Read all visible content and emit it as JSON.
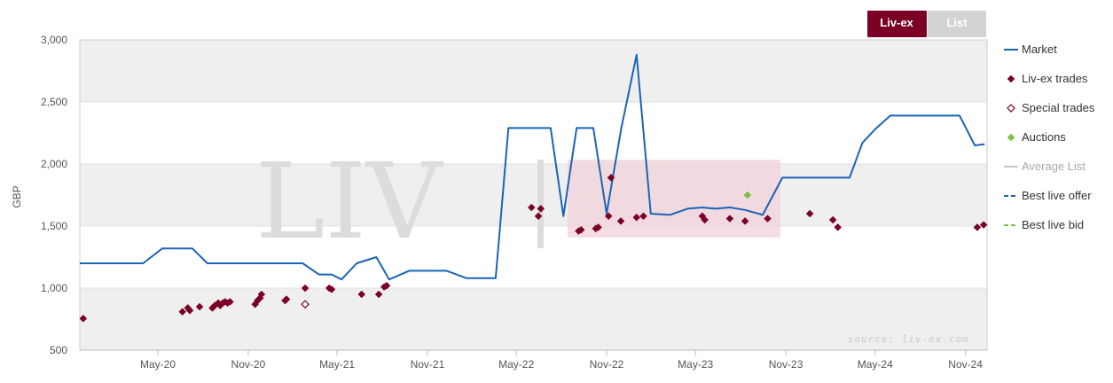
{
  "tabs": [
    {
      "label": "Liv-ex",
      "active": true
    },
    {
      "label": "List",
      "active": false
    }
  ],
  "source_note": "source: liv-ex.com",
  "legend": [
    {
      "label": "Market",
      "marker": "line",
      "color": "#1a64b8"
    },
    {
      "label": "Liv-ex trades",
      "marker": "diamond",
      "color": "#7a0026"
    },
    {
      "label": "Special trades",
      "marker": "diamond-open",
      "color": "#7a0026"
    },
    {
      "label": "Auctions",
      "marker": "diamond",
      "color": "#7cc242"
    },
    {
      "label": "Average List",
      "marker": "line",
      "color": "#c8c8c8",
      "muted": true
    },
    {
      "label": "Best live offer",
      "marker": "dash",
      "color": "#1a64b8"
    },
    {
      "label": "Best live bid",
      "marker": "dash",
      "color": "#7cc242"
    }
  ],
  "colors": {
    "tab_active": "#7a0026",
    "tab_inactive": "#d3d3d3",
    "band": "#efefef",
    "watermark_accent": "#efc9d3"
  },
  "chart_data": {
    "type": "line",
    "ylabel": "GBP",
    "ylim": [
      500,
      3000
    ],
    "yticks": [
      500,
      1000,
      1500,
      2000,
      2500,
      3000
    ],
    "ytick_labels": [
      "500",
      "1,000",
      "1,500",
      "2,000",
      "2,500",
      "3,000"
    ],
    "xlim": [
      "2019-11-24",
      "2024-12-15"
    ],
    "xticks": [
      "2020-05-01",
      "2020-11-01",
      "2021-05-01",
      "2021-11-01",
      "2022-05-01",
      "2022-11-01",
      "2023-05-01",
      "2023-11-01",
      "2024-05-01",
      "2024-11-01"
    ],
    "xtick_labels": [
      "May-20",
      "Nov-20",
      "May-21",
      "Nov-21",
      "May-22",
      "Nov-22",
      "May-23",
      "Nov-23",
      "May-24",
      "Nov-24"
    ],
    "grid": true,
    "legend_position": "right",
    "series": [
      {
        "name": "Market",
        "kind": "line",
        "color": "#1a64b8",
        "points": [
          [
            "2019-11-24",
            1200
          ],
          [
            "2020-04-01",
            1200
          ],
          [
            "2020-05-10",
            1320
          ],
          [
            "2020-07-10",
            1320
          ],
          [
            "2020-08-10",
            1200
          ],
          [
            "2021-01-10",
            1200
          ],
          [
            "2021-02-20",
            1200
          ],
          [
            "2021-03-25",
            1110
          ],
          [
            "2021-04-20",
            1110
          ],
          [
            "2021-05-10",
            1070
          ],
          [
            "2021-06-10",
            1200
          ],
          [
            "2021-07-20",
            1250
          ],
          [
            "2021-08-15",
            1070
          ],
          [
            "2021-09-25",
            1140
          ],
          [
            "2021-12-10",
            1140
          ],
          [
            "2022-01-20",
            1080
          ],
          [
            "2022-03-20",
            1080
          ],
          [
            "2022-04-15",
            2290
          ],
          [
            "2022-07-10",
            2290
          ],
          [
            "2022-08-05",
            1580
          ],
          [
            "2022-09-01",
            2290
          ],
          [
            "2022-10-05",
            2290
          ],
          [
            "2022-11-01",
            1600
          ],
          [
            "2022-12-01",
            2290
          ],
          [
            "2023-01-01",
            2880
          ],
          [
            "2023-01-30",
            1600
          ],
          [
            "2023-03-10",
            1590
          ],
          [
            "2023-04-15",
            1640
          ],
          [
            "2023-05-15",
            1650
          ],
          [
            "2023-06-10",
            1640
          ],
          [
            "2023-07-10",
            1650
          ],
          [
            "2023-08-10",
            1630
          ],
          [
            "2023-09-15",
            1590
          ],
          [
            "2023-10-25",
            1890
          ],
          [
            "2024-03-10",
            1890
          ],
          [
            "2024-04-05",
            2170
          ],
          [
            "2024-05-01",
            2280
          ],
          [
            "2024-06-01",
            2390
          ],
          [
            "2024-10-20",
            2390
          ],
          [
            "2024-11-20",
            2150
          ],
          [
            "2024-12-10",
            2160
          ]
        ]
      },
      {
        "name": "Liv-ex trades",
        "kind": "scatter",
        "marker": "diamond",
        "color": "#7a0026",
        "points": [
          [
            "2019-12-01",
            755
          ],
          [
            "2020-06-20",
            810
          ],
          [
            "2020-07-01",
            840
          ],
          [
            "2020-07-05",
            820
          ],
          [
            "2020-07-25",
            850
          ],
          [
            "2020-08-20",
            840
          ],
          [
            "2020-08-25",
            860
          ],
          [
            "2020-09-01",
            880
          ],
          [
            "2020-09-05",
            860
          ],
          [
            "2020-09-10",
            880
          ],
          [
            "2020-09-15",
            890
          ],
          [
            "2020-09-20",
            880
          ],
          [
            "2020-09-25",
            890
          ],
          [
            "2020-11-15",
            870
          ],
          [
            "2020-11-20",
            900
          ],
          [
            "2020-11-25",
            920
          ],
          [
            "2020-11-28",
            950
          ],
          [
            "2021-01-15",
            900
          ],
          [
            "2021-01-18",
            910
          ],
          [
            "2021-02-25",
            1000
          ],
          [
            "2021-04-15",
            1000
          ],
          [
            "2021-04-20",
            990
          ],
          [
            "2021-06-20",
            950
          ],
          [
            "2021-07-25",
            950
          ],
          [
            "2021-08-05",
            1010
          ],
          [
            "2021-08-10",
            1020
          ],
          [
            "2022-06-01",
            1650
          ],
          [
            "2022-06-15",
            1580
          ],
          [
            "2022-06-20",
            1640
          ],
          [
            "2022-09-05",
            1460
          ],
          [
            "2022-09-10",
            1470
          ],
          [
            "2022-10-10",
            1480
          ],
          [
            "2022-10-15",
            1490
          ],
          [
            "2022-11-05",
            1580
          ],
          [
            "2022-11-10",
            1890
          ],
          [
            "2022-11-30",
            1540
          ],
          [
            "2023-01-01",
            1570
          ],
          [
            "2023-01-15",
            1580
          ],
          [
            "2023-05-15",
            1580
          ],
          [
            "2023-05-20",
            1550
          ],
          [
            "2023-07-10",
            1560
          ],
          [
            "2023-08-10",
            1540
          ],
          [
            "2023-09-25",
            1560
          ],
          [
            "2023-12-20",
            1600
          ],
          [
            "2024-02-05",
            1550
          ],
          [
            "2024-02-15",
            1490
          ],
          [
            "2024-11-25",
            1490
          ],
          [
            "2024-12-08",
            1510
          ]
        ]
      },
      {
        "name": "Special trades",
        "kind": "scatter",
        "marker": "diamond-open",
        "color": "#7a0026",
        "points": [
          [
            "2021-02-25",
            870
          ]
        ]
      },
      {
        "name": "Auctions",
        "kind": "scatter",
        "marker": "diamond",
        "color": "#7cc242",
        "points": [
          [
            "2023-08-15",
            1750
          ]
        ]
      }
    ]
  }
}
